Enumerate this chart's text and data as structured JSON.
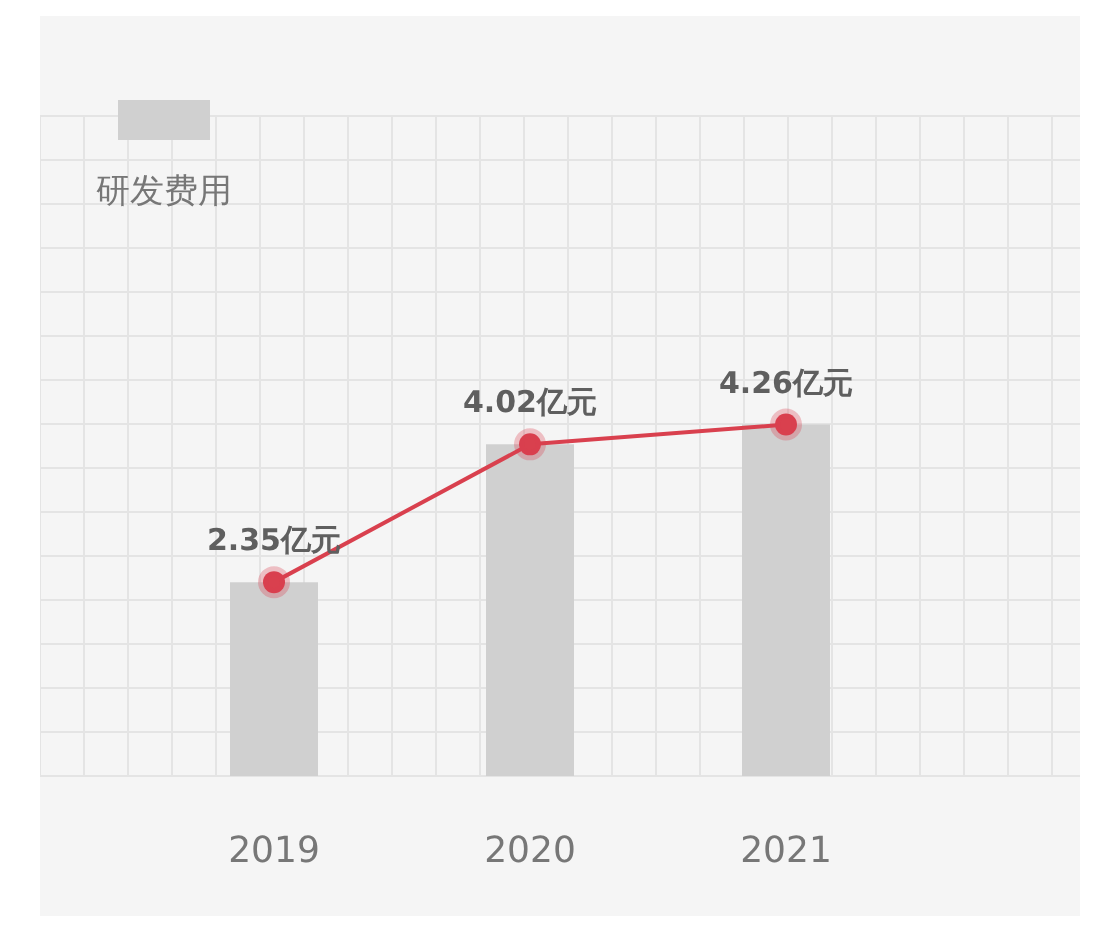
{
  "chart_data": {
    "type": "bar",
    "categories": [
      "2019",
      "2020",
      "2021"
    ],
    "series": [
      {
        "name": "研发费用",
        "color": "#d0d0d0",
        "values": [
          2.35,
          4.02,
          4.26
        ]
      },
      {
        "type": "line",
        "color": "#d9404e",
        "values": [
          2.35,
          4.02,
          4.26
        ],
        "value_labels": [
          "2.35亿元",
          "4.02亿元",
          "4.26亿元"
        ]
      }
    ],
    "legend": "top left",
    "grid": true,
    "marker": "circle",
    "tick_labels": "x"
  }
}
